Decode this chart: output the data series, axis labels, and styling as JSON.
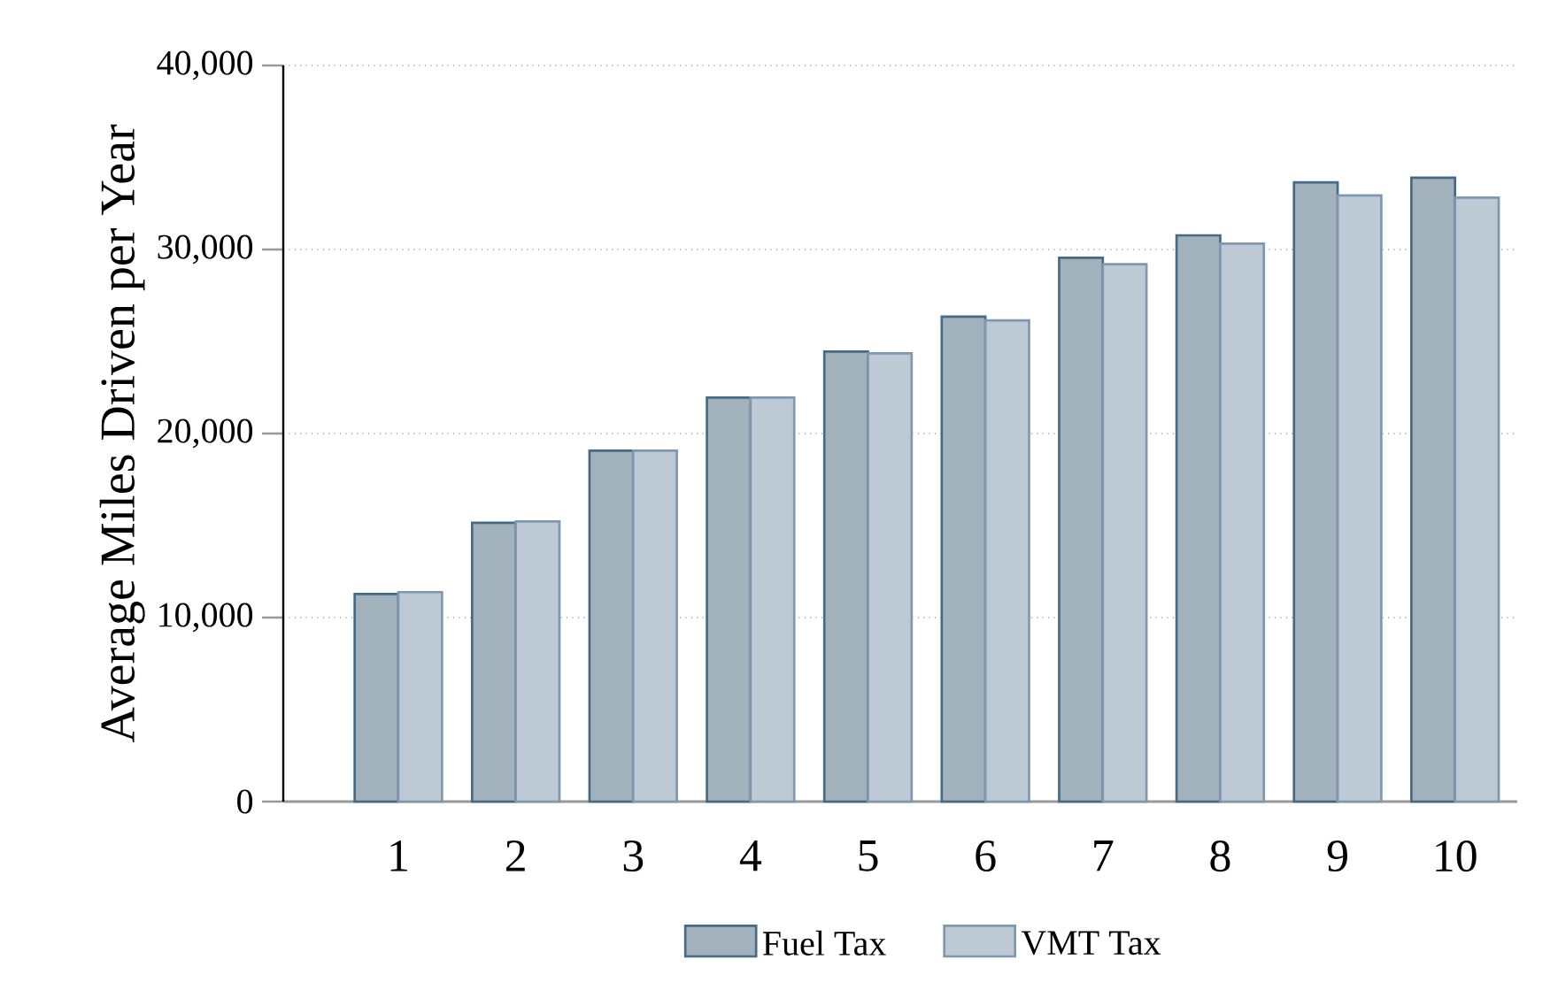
{
  "chart_data": {
    "type": "bar",
    "ylabel": "Average Miles Driven per Year",
    "categories": [
      "1",
      "2",
      "3",
      "4",
      "5",
      "6",
      "7",
      "8",
      "9",
      "10"
    ],
    "series": [
      {
        "name": "Fuel Tax",
        "color": "#a2b2bd",
        "values": [
          11280,
          15150,
          19070,
          21950,
          24450,
          26350,
          29550,
          30770,
          33650,
          33900
        ]
      },
      {
        "name": "VMT Tax",
        "color": "#bdc9d5",
        "values": [
          11380,
          15220,
          19070,
          21950,
          24360,
          26150,
          29200,
          30320,
          32940,
          32820
        ]
      }
    ],
    "ylim": [
      0,
      40000
    ],
    "yticks": [
      {
        "value": 0,
        "label": "0"
      },
      {
        "value": 10000,
        "label": "10,000"
      },
      {
        "value": 20000,
        "label": "20,000"
      },
      {
        "value": 30000,
        "label": "30,000"
      },
      {
        "value": 40000,
        "label": "40,000"
      }
    ],
    "grid": "y",
    "legend": "bottom"
  }
}
